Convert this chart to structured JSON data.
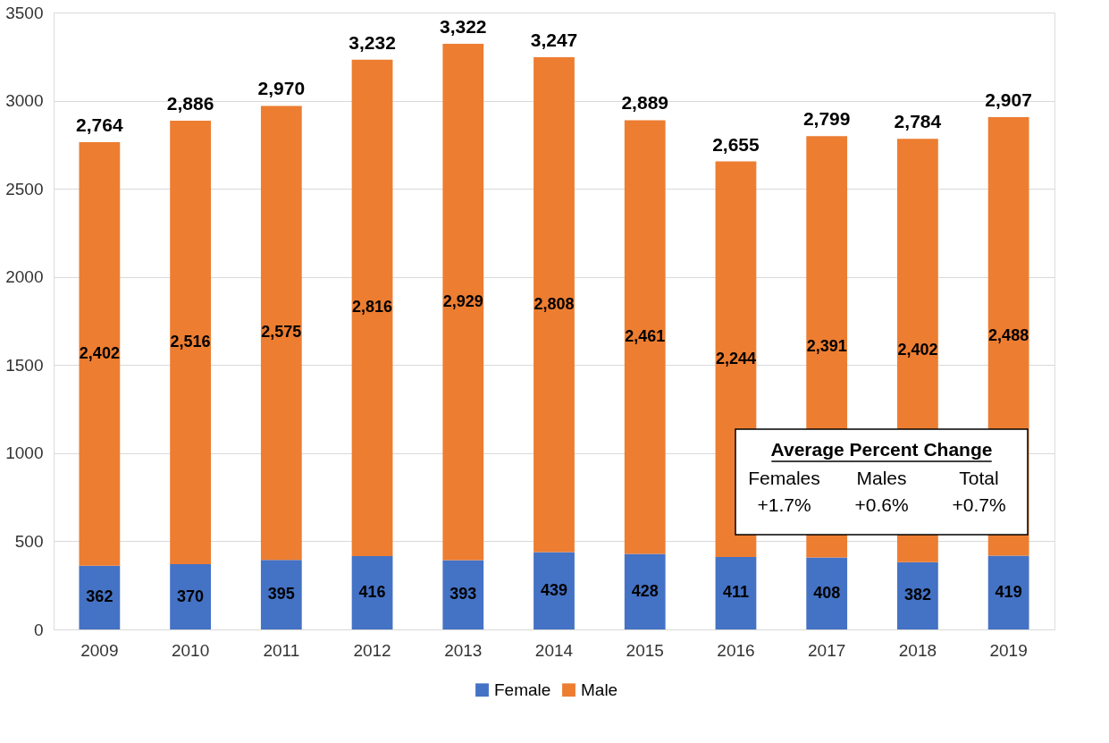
{
  "chart_data": {
    "type": "bar",
    "stacked": true,
    "grid": "y",
    "legend": "bottom",
    "categories": [
      "2009",
      "2010",
      "2011",
      "2012",
      "2013",
      "2014",
      "2015",
      "2016",
      "2017",
      "2018",
      "2019"
    ],
    "series": [
      {
        "name": "Female",
        "color": "#4472c4",
        "values": [
          362,
          370,
          395,
          416,
          393,
          439,
          428,
          411,
          408,
          382,
          419
        ],
        "value_labels": [
          "362",
          "370",
          "395",
          "416",
          "393",
          "439",
          "428",
          "411",
          "408",
          "382",
          "419"
        ]
      },
      {
        "name": "Male",
        "color": "#ed7d31",
        "values": [
          2402,
          2516,
          2575,
          2816,
          2929,
          2808,
          2461,
          2244,
          2391,
          2402,
          2488
        ],
        "value_labels": [
          "2,402",
          "2,516",
          "2,575",
          "2,816",
          "2,929",
          "2,808",
          "2,461",
          "2,244",
          "2,391",
          "2,402",
          "2,488"
        ]
      }
    ],
    "totals": [
      "2,764",
      "2,886",
      "2,970",
      "3,232",
      "3,322",
      "3,247",
      "2,889",
      "2,655",
      "2,799",
      "2,784",
      "2,907"
    ],
    "ylim": [
      0,
      3500
    ],
    "yticks": [
      0,
      500,
      1000,
      1500,
      2000,
      2500,
      3000,
      3500
    ],
    "annotations": [
      "Average Percent Change",
      "Females",
      "+1.7%",
      "Males",
      "+0.6%",
      "Total",
      "+0.7%"
    ]
  }
}
